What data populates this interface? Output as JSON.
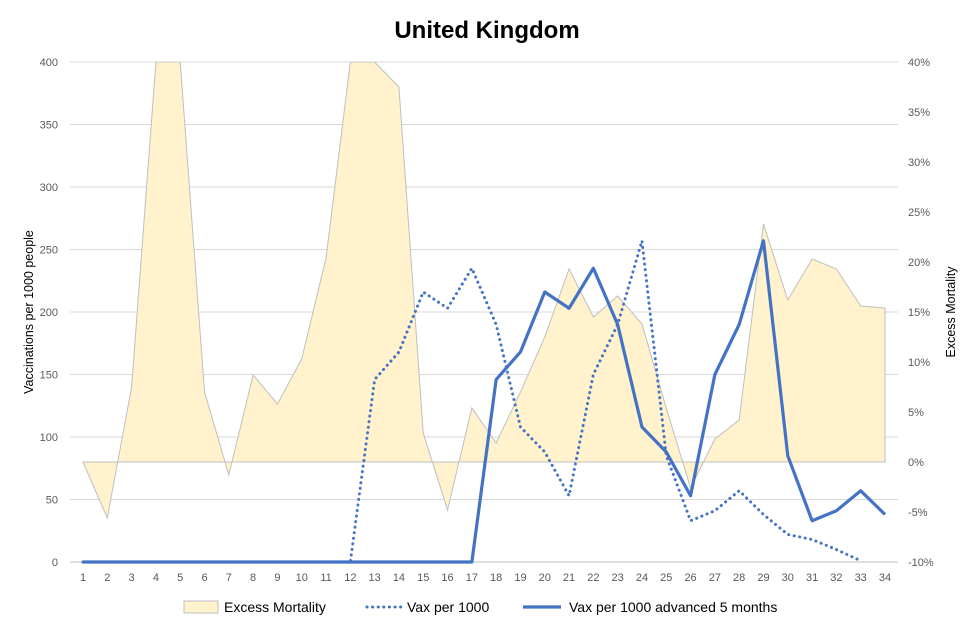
{
  "chart_data": {
    "type": "line",
    "title": "United Kingdom",
    "x": [
      1,
      2,
      3,
      4,
      5,
      6,
      7,
      8,
      9,
      10,
      11,
      12,
      13,
      14,
      15,
      16,
      17,
      18,
      19,
      20,
      21,
      22,
      23,
      24,
      25,
      26,
      27,
      28,
      29,
      30,
      31,
      32,
      33,
      34
    ],
    "ylabel_left": "Vaccinations per 1000 people",
    "ylabel_right": "Excess Mortality",
    "ylim_left": [
      0,
      400
    ],
    "yticks_left": [
      "0",
      "50",
      "100",
      "150",
      "200",
      "250",
      "300",
      "350",
      "400"
    ],
    "ylim_right": [
      -10,
      40
    ],
    "yticks_right": [
      "-10%",
      "-5%",
      "0%",
      "5%",
      "10%",
      "15%",
      "20%",
      "25%",
      "30%",
      "35%",
      "40%"
    ],
    "xticks": [
      "1",
      "2",
      "3",
      "4",
      "5",
      "6",
      "7",
      "8",
      "9",
      "10",
      "11",
      "12",
      "13",
      "14",
      "15",
      "16",
      "17",
      "18",
      "19",
      "20",
      "21",
      "22",
      "23",
      "24",
      "25",
      "26",
      "27",
      "28",
      "29",
      "30",
      "31",
      "32",
      "33",
      "34"
    ],
    "grid": true,
    "legend_position": "bottom",
    "series": [
      {
        "name": "Excess Mortality",
        "type": "area",
        "axis": "right",
        "color": "#FFF2CC",
        "edge_color": "#BFBFBF",
        "values": [
          0,
          -5.6,
          7.5,
          40,
          40,
          7,
          -1.3,
          8.7,
          5.8,
          10.3,
          20.4,
          40,
          40,
          37.5,
          2.9,
          -4.8,
          5.4,
          1.9,
          7,
          12.5,
          19.3,
          14.5,
          16.6,
          13.8,
          5.4,
          -2.6,
          2.3,
          4.2,
          23.8,
          16.2,
          20.3,
          19.3,
          15.6,
          15.4
        ]
      },
      {
        "name": "Vax per 1000",
        "type": "line",
        "axis": "left",
        "style": "dotted",
        "color": "#4472C4",
        "values": [
          0,
          0,
          0,
          0,
          0,
          0,
          0,
          0,
          0,
          0,
          0,
          0,
          146,
          168,
          216,
          203,
          235,
          190,
          108,
          88,
          53,
          150,
          190,
          257,
          85,
          33,
          41,
          57,
          38,
          22,
          18,
          10,
          1,
          null
        ]
      },
      {
        "name": "Vax per 1000 advanced 5 months",
        "type": "line",
        "axis": "left",
        "style": "solid",
        "color": "#4472C4",
        "values": [
          0,
          0,
          0,
          0,
          0,
          0,
          0,
          0,
          0,
          0,
          0,
          0,
          0,
          0,
          0,
          0,
          0,
          146,
          168,
          216,
          203,
          235,
          190,
          108,
          88,
          53,
          150,
          190,
          257,
          85,
          33,
          41,
          57,
          38
        ]
      }
    ]
  }
}
